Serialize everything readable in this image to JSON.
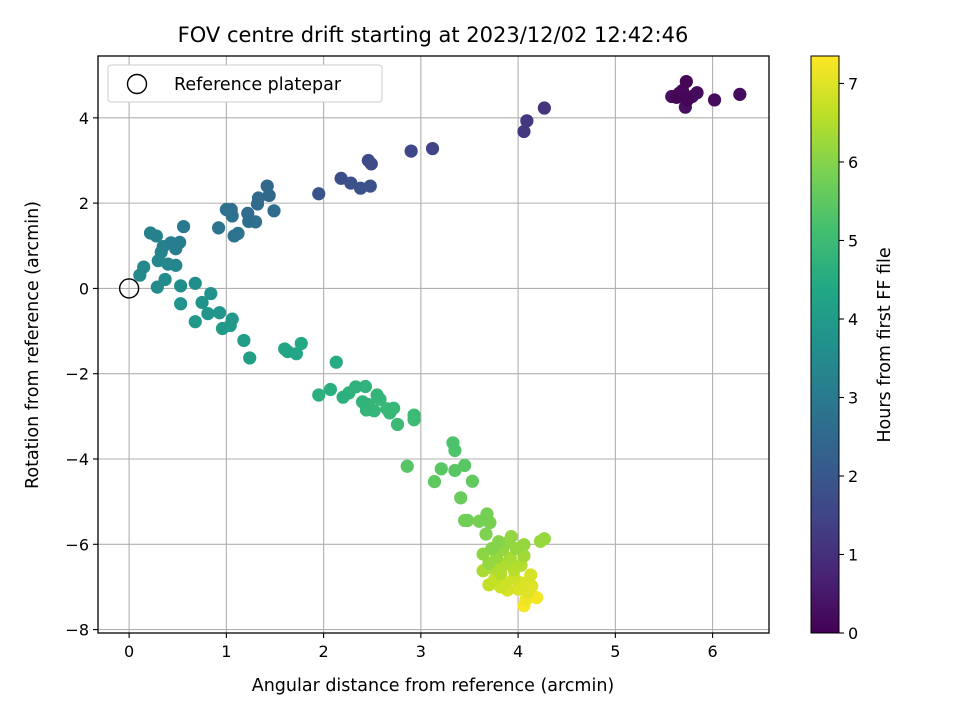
{
  "chart_data": {
    "type": "scatter",
    "title": "FOV centre drift starting at 2023/12/02 12:42:46",
    "xlabel": "Angular distance from reference (arcmin)",
    "ylabel": "Rotation from reference (arcmin)",
    "xlim": [
      -0.32,
      6.58
    ],
    "ylim": [
      -8.08,
      5.45
    ],
    "x_ticks": [
      "0",
      "1",
      "2",
      "3",
      "4",
      "5",
      "6"
    ],
    "y_ticks": [
      "4",
      "2",
      "0",
      "−2",
      "−4",
      "−6",
      "−8"
    ],
    "grid": true,
    "legend": {
      "placement": "top-left",
      "entries": [
        "Reference platepar"
      ]
    },
    "reference_point": {
      "x": 0,
      "y": 0
    },
    "colorbar": {
      "label": "Hours from first FF file",
      "range": [
        0,
        7.35
      ],
      "ticks": [
        "0",
        "1",
        "2",
        "3",
        "4",
        "5",
        "6",
        "7"
      ],
      "colormap": "viridis"
    },
    "points": [
      {
        "x": 5.63,
        "y": 4.48,
        "h": 0.1
      },
      {
        "x": 5.73,
        "y": 4.85,
        "h": 0.1
      },
      {
        "x": 5.69,
        "y": 4.64,
        "h": 0.15
      },
      {
        "x": 5.74,
        "y": 4.42,
        "h": 0.1
      },
      {
        "x": 5.84,
        "y": 4.59,
        "h": 0.2
      },
      {
        "x": 6.02,
        "y": 4.42,
        "h": 0.2
      },
      {
        "x": 6.28,
        "y": 4.55,
        "h": 0.25
      },
      {
        "x": 5.72,
        "y": 4.25,
        "h": 0.3
      },
      {
        "x": 5.58,
        "y": 4.5,
        "h": 0.3
      },
      {
        "x": 5.79,
        "y": 4.5,
        "h": 0.2
      },
      {
        "x": 5.66,
        "y": 4.58,
        "h": 0.2
      },
      {
        "x": 4.27,
        "y": 4.23,
        "h": 1.1
      },
      {
        "x": 4.09,
        "y": 3.93,
        "h": 1.15
      },
      {
        "x": 4.06,
        "y": 3.68,
        "h": 1.2
      },
      {
        "x": 3.12,
        "y": 3.28,
        "h": 1.5
      },
      {
        "x": 2.9,
        "y": 3.22,
        "h": 1.55
      },
      {
        "x": 2.46,
        "y": 3.0,
        "h": 1.65
      },
      {
        "x": 2.49,
        "y": 2.92,
        "h": 1.65
      },
      {
        "x": 2.18,
        "y": 2.58,
        "h": 1.75
      },
      {
        "x": 2.28,
        "y": 2.47,
        "h": 1.8
      },
      {
        "x": 2.38,
        "y": 2.35,
        "h": 1.85
      },
      {
        "x": 2.48,
        "y": 2.4,
        "h": 1.85
      },
      {
        "x": 1.95,
        "y": 2.22,
        "h": 1.9
      },
      {
        "x": 1.42,
        "y": 2.4,
        "h": 2.5
      },
      {
        "x": 1.44,
        "y": 2.18,
        "h": 2.5
      },
      {
        "x": 1.33,
        "y": 2.12,
        "h": 2.55
      },
      {
        "x": 1.32,
        "y": 1.98,
        "h": 2.55
      },
      {
        "x": 1.49,
        "y": 1.82,
        "h": 2.6
      },
      {
        "x": 1.22,
        "y": 1.76,
        "h": 2.6
      },
      {
        "x": 1.23,
        "y": 1.57,
        "h": 2.65
      },
      {
        "x": 1.3,
        "y": 1.56,
        "h": 2.7
      },
      {
        "x": 1.0,
        "y": 1.85,
        "h": 2.7
      },
      {
        "x": 1.05,
        "y": 1.85,
        "h": 2.7
      },
      {
        "x": 1.06,
        "y": 1.7,
        "h": 2.75
      },
      {
        "x": 0.92,
        "y": 1.42,
        "h": 2.8
      },
      {
        "x": 1.08,
        "y": 1.23,
        "h": 2.8
      },
      {
        "x": 1.12,
        "y": 1.29,
        "h": 2.85
      },
      {
        "x": 0.56,
        "y": 1.45,
        "h": 3.0
      },
      {
        "x": 0.52,
        "y": 1.08,
        "h": 3.1
      },
      {
        "x": 0.43,
        "y": 1.07,
        "h": 3.1
      },
      {
        "x": 0.48,
        "y": 0.93,
        "h": 3.15
      },
      {
        "x": 0.35,
        "y": 0.98,
        "h": 3.2
      },
      {
        "x": 0.22,
        "y": 1.3,
        "h": 3.2
      },
      {
        "x": 0.28,
        "y": 1.23,
        "h": 3.25
      },
      {
        "x": 0.33,
        "y": 0.85,
        "h": 3.3
      },
      {
        "x": 0.4,
        "y": 0.57,
        "h": 3.35
      },
      {
        "x": 0.48,
        "y": 0.54,
        "h": 3.35
      },
      {
        "x": 0.3,
        "y": 0.65,
        "h": 3.4
      },
      {
        "x": 0.15,
        "y": 0.5,
        "h": 3.4
      },
      {
        "x": 0.11,
        "y": 0.31,
        "h": 3.45
      },
      {
        "x": 0.37,
        "y": 0.21,
        "h": 3.5
      },
      {
        "x": 0.29,
        "y": 0.03,
        "h": 3.5
      },
      {
        "x": 0.53,
        "y": 0.06,
        "h": 3.6
      },
      {
        "x": 0.68,
        "y": 0.12,
        "h": 3.6
      },
      {
        "x": 0.84,
        "y": -0.12,
        "h": 3.7
      },
      {
        "x": 0.75,
        "y": -0.33,
        "h": 3.75
      },
      {
        "x": 0.53,
        "y": -0.36,
        "h": 3.7
      },
      {
        "x": 0.81,
        "y": -0.59,
        "h": 3.8
      },
      {
        "x": 0.93,
        "y": -0.57,
        "h": 3.85
      },
      {
        "x": 1.06,
        "y": -0.72,
        "h": 3.9
      },
      {
        "x": 1.04,
        "y": -0.87,
        "h": 3.95
      },
      {
        "x": 0.96,
        "y": -0.94,
        "h": 3.95
      },
      {
        "x": 0.68,
        "y": -0.78,
        "h": 3.9
      },
      {
        "x": 1.18,
        "y": -1.22,
        "h": 4.05
      },
      {
        "x": 1.24,
        "y": -1.63,
        "h": 4.1
      },
      {
        "x": 1.6,
        "y": -1.42,
        "h": 4.3
      },
      {
        "x": 1.63,
        "y": -1.48,
        "h": 4.3
      },
      {
        "x": 1.72,
        "y": -1.53,
        "h": 4.35
      },
      {
        "x": 1.77,
        "y": -1.29,
        "h": 4.4
      },
      {
        "x": 2.13,
        "y": -1.73,
        "h": 4.5
      },
      {
        "x": 2.07,
        "y": -2.37,
        "h": 4.6
      },
      {
        "x": 1.95,
        "y": -2.5,
        "h": 4.65
      },
      {
        "x": 2.2,
        "y": -2.55,
        "h": 4.65
      },
      {
        "x": 2.26,
        "y": -2.45,
        "h": 4.7
      },
      {
        "x": 2.33,
        "y": -2.31,
        "h": 4.7
      },
      {
        "x": 2.43,
        "y": -2.3,
        "h": 4.75
      },
      {
        "x": 2.4,
        "y": -2.66,
        "h": 4.75
      },
      {
        "x": 2.46,
        "y": -2.72,
        "h": 4.8
      },
      {
        "x": 2.44,
        "y": -2.85,
        "h": 4.8
      },
      {
        "x": 2.52,
        "y": -2.87,
        "h": 4.85
      },
      {
        "x": 2.55,
        "y": -2.5,
        "h": 4.8
      },
      {
        "x": 2.58,
        "y": -2.6,
        "h": 4.85
      },
      {
        "x": 2.65,
        "y": -2.82,
        "h": 4.9
      },
      {
        "x": 2.68,
        "y": -2.92,
        "h": 4.9
      },
      {
        "x": 2.72,
        "y": -2.81,
        "h": 4.9
      },
      {
        "x": 2.76,
        "y": -3.19,
        "h": 4.95
      },
      {
        "x": 2.93,
        "y": -2.97,
        "h": 5.0
      },
      {
        "x": 2.93,
        "y": -3.08,
        "h": 5.0
      },
      {
        "x": 2.86,
        "y": -4.17,
        "h": 5.4
      },
      {
        "x": 3.14,
        "y": -4.53,
        "h": 5.5
      },
      {
        "x": 3.21,
        "y": -4.23,
        "h": 5.45
      },
      {
        "x": 3.33,
        "y": -3.62,
        "h": 5.25
      },
      {
        "x": 3.35,
        "y": -3.8,
        "h": 5.3
      },
      {
        "x": 3.35,
        "y": -4.27,
        "h": 5.45
      },
      {
        "x": 3.45,
        "y": -4.15,
        "h": 5.45
      },
      {
        "x": 3.53,
        "y": -4.52,
        "h": 5.55
      },
      {
        "x": 3.41,
        "y": -4.91,
        "h": 5.65
      },
      {
        "x": 3.45,
        "y": -5.44,
        "h": 5.75
      },
      {
        "x": 3.48,
        "y": -5.44,
        "h": 5.75
      },
      {
        "x": 3.6,
        "y": -5.46,
        "h": 5.8
      },
      {
        "x": 3.68,
        "y": -5.29,
        "h": 5.8
      },
      {
        "x": 3.71,
        "y": -5.49,
        "h": 5.85
      },
      {
        "x": 3.67,
        "y": -5.76,
        "h": 5.9
      },
      {
        "x": 3.73,
        "y": -6.1,
        "h": 6.0
      },
      {
        "x": 3.8,
        "y": -5.94,
        "h": 6.0
      },
      {
        "x": 3.64,
        "y": -6.23,
        "h": 6.1
      },
      {
        "x": 3.7,
        "y": -6.45,
        "h": 6.2
      },
      {
        "x": 3.78,
        "y": -6.3,
        "h": 6.2
      },
      {
        "x": 3.84,
        "y": -6.12,
        "h": 6.15
      },
      {
        "x": 3.9,
        "y": -5.95,
        "h": 6.15
      },
      {
        "x": 3.93,
        "y": -5.82,
        "h": 6.15
      },
      {
        "x": 3.98,
        "y": -6.1,
        "h": 6.2
      },
      {
        "x": 4.06,
        "y": -6.01,
        "h": 6.2
      },
      {
        "x": 4.06,
        "y": -6.27,
        "h": 6.3
      },
      {
        "x": 4.23,
        "y": -5.93,
        "h": 6.2
      },
      {
        "x": 4.27,
        "y": -5.87,
        "h": 6.2
      },
      {
        "x": 3.64,
        "y": -6.62,
        "h": 6.4
      },
      {
        "x": 3.74,
        "y": -6.56,
        "h": 6.45
      },
      {
        "x": 3.82,
        "y": -6.68,
        "h": 6.5
      },
      {
        "x": 3.86,
        "y": -6.47,
        "h": 6.45
      },
      {
        "x": 3.92,
        "y": -6.33,
        "h": 6.4
      },
      {
        "x": 3.96,
        "y": -6.6,
        "h": 6.55
      },
      {
        "x": 4.03,
        "y": -6.49,
        "h": 6.5
      },
      {
        "x": 3.7,
        "y": -6.95,
        "h": 6.7
      },
      {
        "x": 3.76,
        "y": -6.82,
        "h": 6.7
      },
      {
        "x": 3.82,
        "y": -7.0,
        "h": 6.8
      },
      {
        "x": 3.87,
        "y": -6.9,
        "h": 6.8
      },
      {
        "x": 3.89,
        "y": -7.07,
        "h": 6.9
      },
      {
        "x": 3.96,
        "y": -6.8,
        "h": 6.8
      },
      {
        "x": 4.0,
        "y": -7.05,
        "h": 6.95
      },
      {
        "x": 4.05,
        "y": -6.92,
        "h": 6.95
      },
      {
        "x": 4.1,
        "y": -7.12,
        "h": 7.0
      },
      {
        "x": 4.13,
        "y": -6.72,
        "h": 6.9
      },
      {
        "x": 4.14,
        "y": -6.98,
        "h": 7.0
      },
      {
        "x": 4.08,
        "y": -7.3,
        "h": 7.2
      },
      {
        "x": 4.06,
        "y": -7.44,
        "h": 7.3
      },
      {
        "x": 4.19,
        "y": -7.25,
        "h": 7.25
      },
      {
        "x": 4.02,
        "y": -6.9,
        "h": 7.1
      }
    ]
  }
}
